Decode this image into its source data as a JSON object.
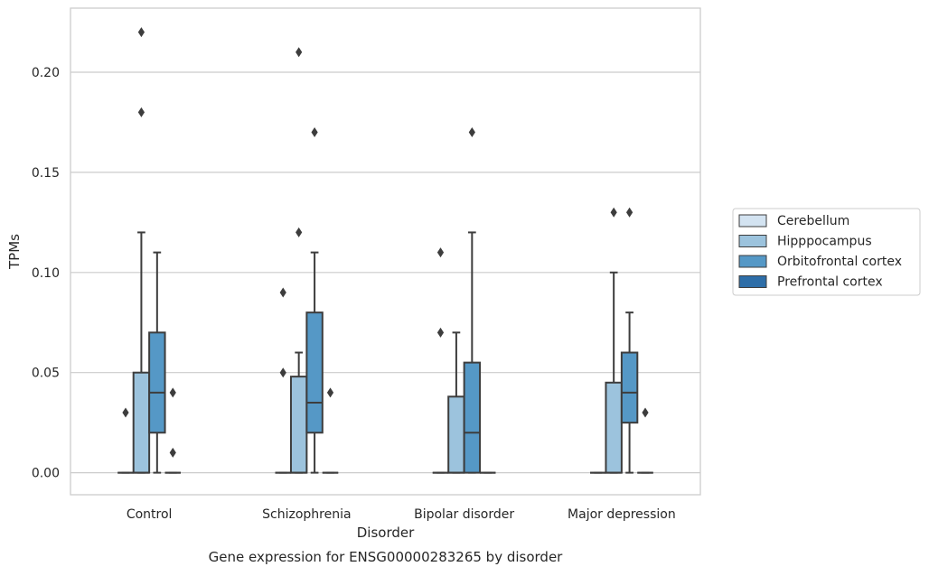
{
  "chart_data": {
    "type": "boxplot",
    "title": "Gene expression for ENSG00000283265 by disorder",
    "xlabel": "Disorder",
    "ylabel": "TPMs",
    "ylim": [
      -0.011,
      0.232
    ],
    "yticks": [
      0.0,
      0.05,
      0.1,
      0.15,
      0.2
    ],
    "ytick_labels": [
      "0.00",
      "0.05",
      "0.10",
      "0.15",
      "0.20"
    ],
    "grid": "horizontal",
    "legend_position": "right",
    "categories": [
      "Control",
      "Schizophrenia",
      "Bipolar disorder",
      "Major depression"
    ],
    "series": [
      {
        "name": "Cerebellum",
        "color": "#d3e3f1",
        "boxes": [
          {
            "q1": 0,
            "median": 0,
            "q3": 0,
            "whisker_low": 0,
            "whisker_high": 0,
            "outliers": [
              0.03
            ]
          },
          {
            "q1": 0,
            "median": 0,
            "q3": 0,
            "whisker_low": 0,
            "whisker_high": 0,
            "outliers": [
              0.05,
              0.09
            ]
          },
          {
            "q1": 0,
            "median": 0,
            "q3": 0,
            "whisker_low": 0,
            "whisker_high": 0,
            "outliers": [
              0.07,
              0.11
            ]
          },
          {
            "q1": 0,
            "median": 0,
            "q3": 0,
            "whisker_low": 0,
            "whisker_high": 0,
            "outliers": []
          }
        ]
      },
      {
        "name": "Hipppocampus",
        "color": "#9cc3dd",
        "boxes": [
          {
            "q1": 0,
            "median": 0,
            "q3": 0.05,
            "whisker_low": 0,
            "whisker_high": 0.12,
            "outliers": [
              0.18,
              0.22
            ]
          },
          {
            "q1": 0,
            "median": 0,
            "q3": 0.048,
            "whisker_low": 0,
            "whisker_high": 0.06,
            "outliers": [
              0.12,
              0.21
            ]
          },
          {
            "q1": 0,
            "median": 0,
            "q3": 0.038,
            "whisker_low": 0,
            "whisker_high": 0.07,
            "outliers": []
          },
          {
            "q1": 0,
            "median": 0,
            "q3": 0.045,
            "whisker_low": 0,
            "whisker_high": 0.1,
            "outliers": [
              0.13
            ]
          }
        ]
      },
      {
        "name": "Orbitofrontal cortex",
        "color": "#5598c6",
        "boxes": [
          {
            "q1": 0.02,
            "median": 0.04,
            "q3": 0.07,
            "whisker_low": 0,
            "whisker_high": 0.11,
            "outliers": []
          },
          {
            "q1": 0.02,
            "median": 0.035,
            "q3": 0.08,
            "whisker_low": 0,
            "whisker_high": 0.11,
            "outliers": [
              0.17
            ]
          },
          {
            "q1": 0,
            "median": 0.02,
            "q3": 0.055,
            "whisker_low": 0,
            "whisker_high": 0.12,
            "outliers": [
              0.17
            ]
          },
          {
            "q1": 0.025,
            "median": 0.04,
            "q3": 0.06,
            "whisker_low": 0,
            "whisker_high": 0.08,
            "outliers": [
              0.13
            ]
          }
        ]
      },
      {
        "name": "Prefrontal cortex",
        "color": "#2e6ea8",
        "boxes": [
          {
            "q1": 0,
            "median": 0,
            "q3": 0,
            "whisker_low": 0,
            "whisker_high": 0,
            "outliers": [
              0.01,
              0.04
            ]
          },
          {
            "q1": 0,
            "median": 0,
            "q3": 0,
            "whisker_low": 0,
            "whisker_high": 0,
            "outliers": [
              0.04
            ]
          },
          {
            "q1": 0,
            "median": 0,
            "q3": 0,
            "whisker_low": 0,
            "whisker_high": 0,
            "outliers": []
          },
          {
            "q1": 0,
            "median": 0,
            "q3": 0,
            "whisker_low": 0,
            "whisker_high": 0,
            "outliers": [
              0.03
            ]
          }
        ]
      }
    ]
  }
}
